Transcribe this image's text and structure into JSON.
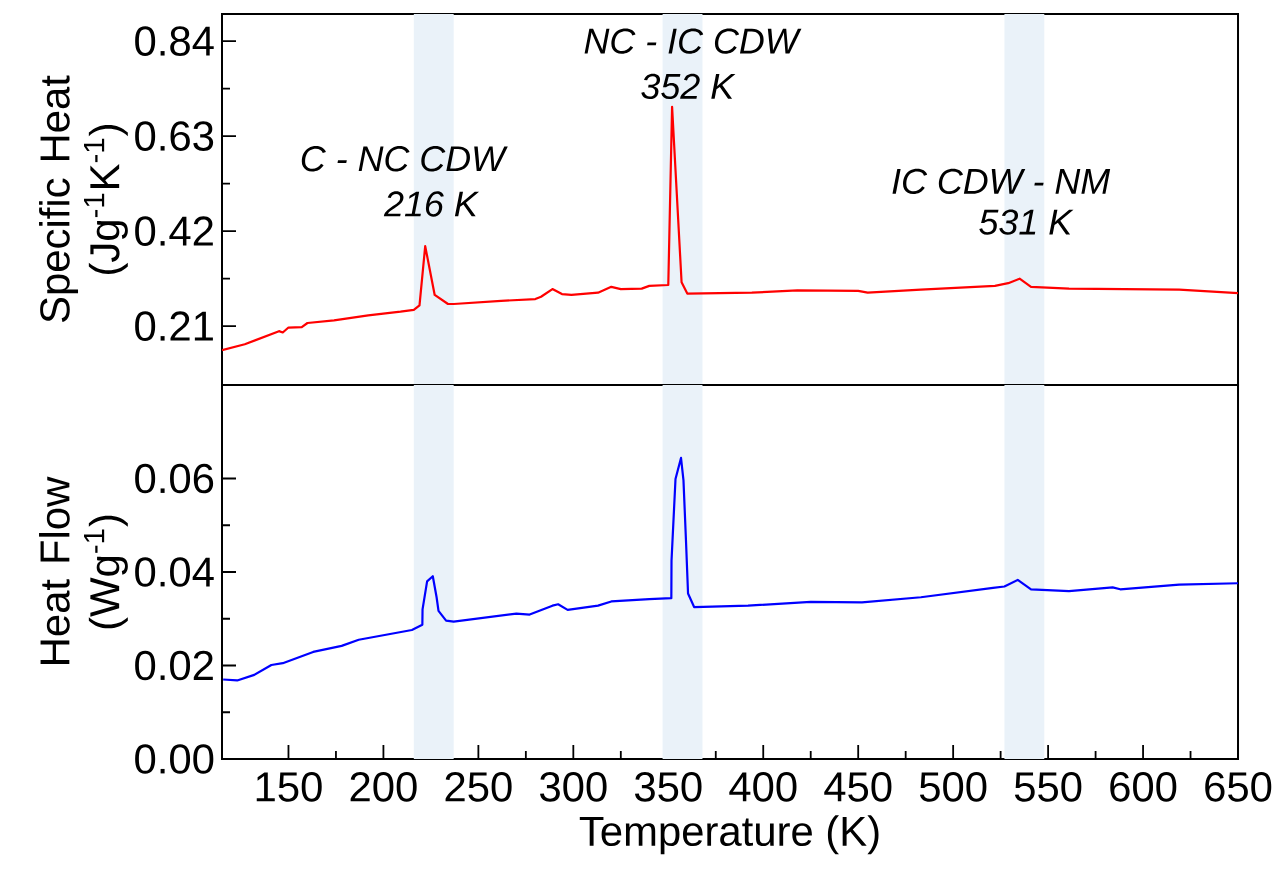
{
  "chart_data": [
    {
      "type": "line",
      "ylabel": "Specific Heat (Jg$^{-1}$K$^{-1}$)",
      "xlim": [
        115,
        650
      ],
      "ylim": [
        0.08,
        0.9
      ],
      "xticks": [
        150,
        200,
        250,
        300,
        350,
        400,
        450,
        500,
        550,
        600,
        650
      ],
      "yticks": [
        0.21,
        0.42,
        0.63,
        0.84
      ],
      "tick_labels": "y",
      "series": [
        {
          "color": "#ff0000",
          "x": [
            115,
            127,
            145,
            147,
            150,
            157,
            160,
            174,
            192,
            209,
            216,
            219,
            222,
            227,
            234,
            237,
            262,
            280,
            283,
            289,
            294,
            299,
            313,
            320,
            325,
            336,
            340,
            350,
            352,
            357,
            360,
            394,
            418,
            450,
            455,
            483,
            522,
            529,
            535,
            541,
            561,
            619,
            650
          ],
          "values": [
            0.157,
            0.17,
            0.199,
            0.196,
            0.207,
            0.208,
            0.217,
            0.223,
            0.234,
            0.242,
            0.246,
            0.256,
            0.387,
            0.279,
            0.259,
            0.259,
            0.266,
            0.27,
            0.275,
            0.292,
            0.281,
            0.279,
            0.284,
            0.297,
            0.292,
            0.293,
            0.299,
            0.301,
            0.695,
            0.307,
            0.282,
            0.284,
            0.289,
            0.288,
            0.284,
            0.291,
            0.299,
            0.305,
            0.315,
            0.297,
            0.293,
            0.291,
            0.283
          ]
        }
      ],
      "bands": [
        {
          "axis": "x",
          "from": 216,
          "to": 237,
          "color": "#eaf2f9"
        },
        {
          "axis": "x",
          "from": 347,
          "to": 368,
          "color": "#eaf2f9"
        },
        {
          "axis": "x",
          "from": 527,
          "to": 548,
          "color": "#eaf2f9"
        }
      ],
      "annotations": [
        "C - NC CDW",
        "216 K",
        "NC - IC CDW",
        "352 K",
        "IC CDW - NM",
        "531 K"
      ]
    },
    {
      "type": "line",
      "xlabel": "Temperature (K)",
      "ylabel": "Heat Flow (Wg$^{-1}$)",
      "xlim": [
        115,
        650
      ],
      "ylim": [
        0,
        0.08
      ],
      "xticks": [
        150,
        200,
        250,
        300,
        350,
        400,
        450,
        500,
        550,
        600,
        650
      ],
      "yticks": [
        {
          "value": 0,
          "label": "0.00"
        },
        0.02,
        0.04,
        0.06
      ],
      "series": [
        {
          "color": "#0000ff",
          "x": [
            115.6,
            123,
            132,
            141,
            147,
            163,
            178,
            187,
            215,
            220.5,
            220.6,
            223,
            226,
            228,
            229,
            233,
            237,
            270,
            277,
            289,
            292,
            297,
            313,
            320,
            340,
            351.6,
            351.7,
            353.8,
            356.7,
            358,
            359.3,
            360.4,
            363.6,
            392,
            425,
            452,
            483,
            521,
            527,
            534,
            541,
            561,
            584,
            588,
            619,
            650
          ],
          "values": [
            0.017,
            0.0168,
            0.018,
            0.0201,
            0.0205,
            0.0229,
            0.0242,
            0.0255,
            0.0276,
            0.0287,
            0.032,
            0.038,
            0.0391,
            0.0346,
            0.0317,
            0.0296,
            0.0294,
            0.0311,
            0.0309,
            0.0328,
            0.0331,
            0.0319,
            0.0328,
            0.0337,
            0.0342,
            0.0344,
            0.0424,
            0.0599,
            0.0644,
            0.0596,
            0.0469,
            0.0354,
            0.0325,
            0.0328,
            0.0336,
            0.0335,
            0.0346,
            0.0366,
            0.0369,
            0.0383,
            0.0363,
            0.0359,
            0.0367,
            0.0363,
            0.0373,
            0.0376
          ]
        }
      ],
      "bands": [
        {
          "axis": "x",
          "from": 216,
          "to": 237,
          "color": "#eaf2f9"
        },
        {
          "axis": "x",
          "from": 347,
          "to": 368,
          "color": "#eaf2f9"
        },
        {
          "axis": "x",
          "from": 527,
          "to": 548,
          "color": "#eaf2f9"
        }
      ]
    }
  ]
}
